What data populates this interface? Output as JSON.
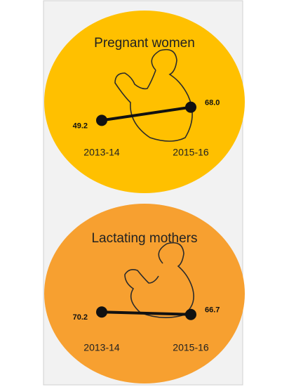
{
  "chart_data": [
    {
      "type": "line",
      "title": "Pregnant women",
      "categories": [
        "2013-14",
        "2015-16"
      ],
      "values": [
        49.2,
        68
      ],
      "value_labels": [
        "49.2",
        "68.0"
      ],
      "color": "#ffc000"
    },
    {
      "type": "line",
      "title": "Lactating mothers",
      "categories": [
        "2013-14",
        "2015-16"
      ],
      "values": [
        70.2,
        66.7
      ],
      "value_labels": [
        "70.2",
        "66.7"
      ],
      "color": "#f7a030"
    }
  ]
}
